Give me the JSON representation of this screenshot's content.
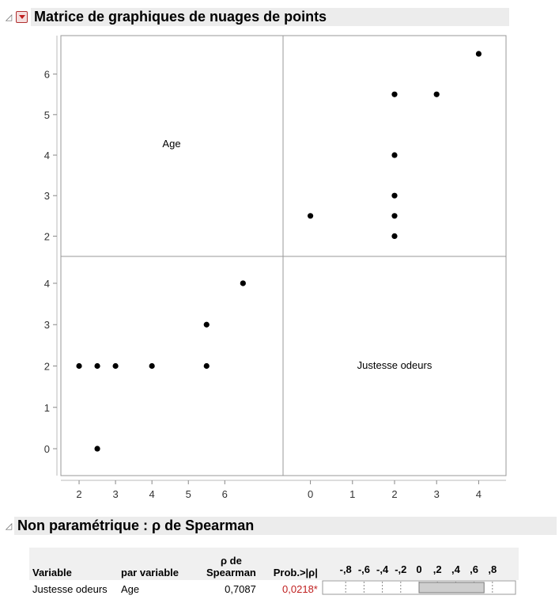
{
  "report": {
    "matrix_title": "Matrice de graphiques de nuages de points",
    "np_title": "Non paramétrique : ρ de Spearman"
  },
  "chart_data": {
    "type": "scatter",
    "variables": [
      "Age",
      "Justesse odeurs"
    ],
    "diagonal_labels": [
      "Age",
      "Justesse odeurs"
    ],
    "axes": {
      "Age": {
        "range": [
          1.5,
          7.6
        ],
        "ticks": [
          "2",
          "3",
          "4",
          "5",
          "6"
        ]
      },
      "Justesse odeurs": {
        "range": [
          -0.65,
          4.65
        ],
        "ticks": [
          "0",
          "1",
          "2",
          "3",
          "4"
        ]
      }
    },
    "row_axis_labels": {
      "Age": [
        "2",
        "3",
        "4",
        "5",
        "6"
      ],
      "Justesse odeurs": [
        "0",
        "1",
        "2",
        "3",
        "4"
      ]
    },
    "points": [
      {
        "Age": 2,
        "Justesse odeurs": 2
      },
      {
        "Age": 2.5,
        "Justesse odeurs": 2
      },
      {
        "Age": 3,
        "Justesse odeurs": 2
      },
      {
        "Age": 4,
        "Justesse odeurs": 2
      },
      {
        "Age": 5.5,
        "Justesse odeurs": 2
      },
      {
        "Age": 5.5,
        "Justesse odeurs": 3
      },
      {
        "Age": 6.5,
        "Justesse odeurs": 4
      },
      {
        "Age": 2.5,
        "Justesse odeurs": 0
      }
    ],
    "grid": false
  },
  "spearman": {
    "headers": {
      "variable": "Variable",
      "par_variable": "par variable",
      "rho_line1": "ρ de",
      "rho_line2": "Spearman",
      "prob": "Prob.>|ρ|"
    },
    "bar_axis_labels": [
      "-,8",
      "-,6",
      "-,4",
      "-,2",
      "0",
      ",2",
      ",4",
      ",6",
      ",8"
    ],
    "rows": [
      {
        "variable": "Justesse odeurs",
        "par_variable": "Age",
        "rho": "0,7087",
        "rho_value": 0.7087,
        "prob": "0,0218*"
      }
    ]
  }
}
